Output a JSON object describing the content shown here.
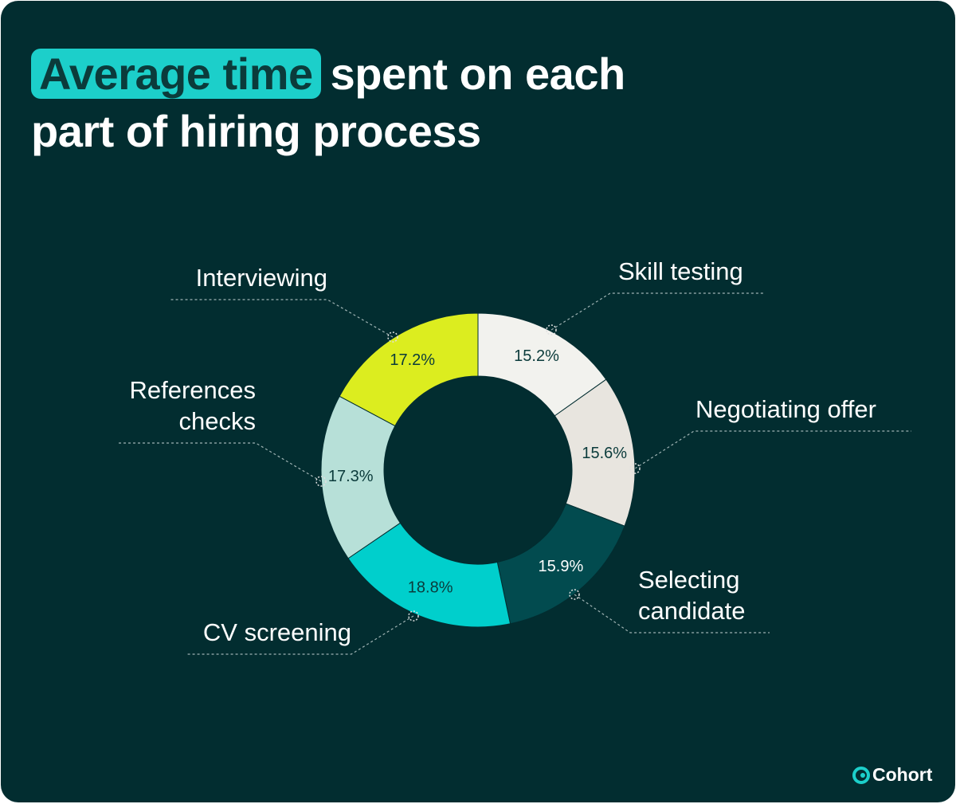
{
  "title_highlight": "Average time",
  "title": "spent on each part of hiring process",
  "logo": "Cohort",
  "chart_data": {
    "type": "donut",
    "categories": [
      "Skill testing",
      "Negotiating offer",
      "Selecting candidate",
      "CV screening",
      "References checks",
      "Interviewing"
    ],
    "values": [
      15.2,
      15.6,
      15.9,
      18.8,
      17.3,
      17.2
    ],
    "value_labels": [
      "15.2%",
      "15.6%",
      "15.9%",
      "18.8%",
      "17.3%",
      "17.2%"
    ],
    "colors": [
      "#f2f2ee",
      "#e8e5df",
      "#024b4f",
      "#00cfcc",
      "#b7e0d8",
      "#dced1f"
    ]
  }
}
